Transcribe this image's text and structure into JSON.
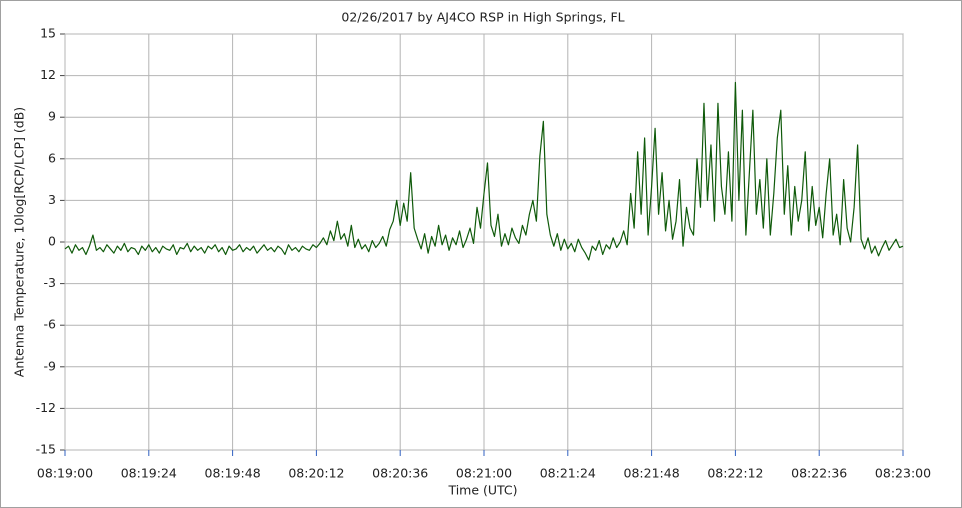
{
  "chart_data": {
    "type": "line",
    "title": "02/26/2017  by  AJ4CO RSP  in  High Springs, FL",
    "xlabel": "Time (UTC)",
    "ylabel": "Antenna Temperature, 10log[RCP/LCP] (dB)",
    "color": "#0f5a0a",
    "grid": true,
    "xlim": [
      "08:19:00",
      "08:23:00"
    ],
    "xticks": [
      "08:19:00",
      "08:19:24",
      "08:19:48",
      "08:20:12",
      "08:20:36",
      "08:21:00",
      "08:21:24",
      "08:21:48",
      "08:22:12",
      "08:22:36",
      "08:23:00"
    ],
    "ylim": [
      -15,
      15
    ],
    "yticks": [
      -15,
      -12,
      -9,
      -6,
      -3,
      0,
      3,
      6,
      9,
      12,
      15
    ],
    "x": [
      "08:19:00",
      "08:19:01",
      "08:19:02",
      "08:19:03",
      "08:19:04",
      "08:19:05",
      "08:19:06",
      "08:19:07",
      "08:19:08",
      "08:19:09",
      "08:19:10",
      "08:19:11",
      "08:19:12",
      "08:19:13",
      "08:19:14",
      "08:19:15",
      "08:19:16",
      "08:19:17",
      "08:19:18",
      "08:19:19",
      "08:19:20",
      "08:19:21",
      "08:19:22",
      "08:19:23",
      "08:19:24",
      "08:19:25",
      "08:19:26",
      "08:19:27",
      "08:19:28",
      "08:19:29",
      "08:19:30",
      "08:19:31",
      "08:19:32",
      "08:19:33",
      "08:19:34",
      "08:19:35",
      "08:19:36",
      "08:19:37",
      "08:19:38",
      "08:19:39",
      "08:19:40",
      "08:19:41",
      "08:19:42",
      "08:19:43",
      "08:19:44",
      "08:19:45",
      "08:19:46",
      "08:19:47",
      "08:19:48",
      "08:19:49",
      "08:19:50",
      "08:19:51",
      "08:19:52",
      "08:19:53",
      "08:19:54",
      "08:19:55",
      "08:19:56",
      "08:19:57",
      "08:19:58",
      "08:19:59",
      "08:20:00",
      "08:20:01",
      "08:20:02",
      "08:20:03",
      "08:20:04",
      "08:20:05",
      "08:20:06",
      "08:20:07",
      "08:20:08",
      "08:20:09",
      "08:20:10",
      "08:20:11",
      "08:20:12",
      "08:20:13",
      "08:20:14",
      "08:20:15",
      "08:20:16",
      "08:20:17",
      "08:20:18",
      "08:20:19",
      "08:20:20",
      "08:20:21",
      "08:20:22",
      "08:20:23",
      "08:20:24",
      "08:20:25",
      "08:20:26",
      "08:20:27",
      "08:20:28",
      "08:20:29",
      "08:20:30",
      "08:20:31",
      "08:20:32",
      "08:20:33",
      "08:20:34",
      "08:20:35",
      "08:20:36",
      "08:20:37",
      "08:20:38",
      "08:20:39",
      "08:20:40",
      "08:20:41",
      "08:20:42",
      "08:20:43",
      "08:20:44",
      "08:20:45",
      "08:20:46",
      "08:20:47",
      "08:20:48",
      "08:20:49",
      "08:20:50",
      "08:20:51",
      "08:20:52",
      "08:20:53",
      "08:20:54",
      "08:20:55",
      "08:20:56",
      "08:20:57",
      "08:20:58",
      "08:20:59",
      "08:21:00",
      "08:21:01",
      "08:21:02",
      "08:21:03",
      "08:21:04",
      "08:21:05",
      "08:21:06",
      "08:21:07",
      "08:21:08",
      "08:21:09",
      "08:21:10",
      "08:21:11",
      "08:21:12",
      "08:21:13",
      "08:21:14",
      "08:21:15",
      "08:21:16",
      "08:21:17",
      "08:21:18",
      "08:21:19",
      "08:21:20",
      "08:21:21",
      "08:21:22",
      "08:21:23",
      "08:21:24",
      "08:21:25",
      "08:21:26",
      "08:21:27",
      "08:21:28",
      "08:21:29",
      "08:21:30",
      "08:21:31",
      "08:21:32",
      "08:21:33",
      "08:21:34",
      "08:21:35",
      "08:21:36",
      "08:21:37",
      "08:21:38",
      "08:21:39",
      "08:21:40",
      "08:21:41",
      "08:21:42",
      "08:21:43",
      "08:21:44",
      "08:21:45",
      "08:21:46",
      "08:21:47",
      "08:21:48",
      "08:21:49",
      "08:21:50",
      "08:21:51",
      "08:21:52",
      "08:21:53",
      "08:21:54",
      "08:21:55",
      "08:21:56",
      "08:21:57",
      "08:21:58",
      "08:21:59",
      "08:22:00",
      "08:22:01",
      "08:22:02",
      "08:22:03",
      "08:22:04",
      "08:22:05",
      "08:22:06",
      "08:22:07",
      "08:22:08",
      "08:22:09",
      "08:22:10",
      "08:22:11",
      "08:22:12",
      "08:22:13",
      "08:22:14",
      "08:22:15",
      "08:22:16",
      "08:22:17",
      "08:22:18",
      "08:22:19",
      "08:22:20",
      "08:22:21",
      "08:22:22",
      "08:22:23",
      "08:22:24",
      "08:22:25",
      "08:22:26",
      "08:22:27",
      "08:22:28",
      "08:22:29",
      "08:22:30",
      "08:22:31",
      "08:22:32",
      "08:22:33",
      "08:22:34",
      "08:22:35",
      "08:22:36",
      "08:22:37",
      "08:22:38",
      "08:22:39",
      "08:22:40",
      "08:22:41",
      "08:22:42",
      "08:22:43",
      "08:22:44",
      "08:22:45",
      "08:22:46",
      "08:22:47",
      "08:22:48",
      "08:22:49",
      "08:22:50",
      "08:22:51",
      "08:22:52",
      "08:22:53",
      "08:22:54",
      "08:22:55",
      "08:22:56",
      "08:22:57",
      "08:22:58",
      "08:22:59",
      "08:23:00"
    ],
    "values": [
      -0.5,
      -0.3,
      -0.8,
      -0.2,
      -0.6,
      -0.4,
      -0.9,
      -0.3,
      0.5,
      -0.6,
      -0.4,
      -0.7,
      -0.2,
      -0.5,
      -0.8,
      -0.3,
      -0.6,
      -0.1,
      -0.7,
      -0.4,
      -0.5,
      -0.9,
      -0.3,
      -0.6,
      -0.2,
      -0.7,
      -0.4,
      -0.8,
      -0.3,
      -0.5,
      -0.6,
      -0.2,
      -0.9,
      -0.4,
      -0.5,
      -0.1,
      -0.7,
      -0.3,
      -0.6,
      -0.4,
      -0.8,
      -0.3,
      -0.5,
      -0.2,
      -0.7,
      -0.4,
      -0.9,
      -0.3,
      -0.6,
      -0.5,
      -0.2,
      -0.7,
      -0.4,
      -0.6,
      -0.3,
      -0.8,
      -0.5,
      -0.2,
      -0.6,
      -0.4,
      -0.7,
      -0.3,
      -0.5,
      -0.9,
      -0.2,
      -0.6,
      -0.4,
      -0.7,
      -0.3,
      -0.5,
      -0.6,
      -0.2,
      -0.4,
      -0.1,
      0.3,
      -0.2,
      0.8,
      0.1,
      1.5,
      0.2,
      0.6,
      -0.3,
      1.2,
      -0.4,
      0.2,
      -0.5,
      -0.2,
      -0.7,
      0.1,
      -0.4,
      -0.1,
      0.4,
      -0.3,
      0.9,
      1.5,
      3.0,
      1.2,
      2.8,
      1.5,
      5.0,
      1.0,
      0.2,
      -0.5,
      0.6,
      -0.8,
      0.4,
      -0.3,
      1.2,
      -0.2,
      0.5,
      -0.6,
      0.3,
      -0.2,
      0.8,
      -0.4,
      0.2,
      1.0,
      -0.1,
      2.5,
      1.0,
      3.5,
      5.7,
      1.2,
      0.4,
      2.0,
      -0.3,
      0.6,
      -0.2,
      1.0,
      0.3,
      -0.1,
      1.2,
      0.5,
      2.0,
      3.0,
      1.5,
      6.2,
      8.7,
      2.0,
      0.5,
      -0.3,
      0.6,
      -0.6,
      0.2,
      -0.5,
      -0.1,
      -0.7,
      0.2,
      -0.4,
      -0.8,
      -1.3,
      -0.3,
      -0.6,
      0.1,
      -0.9,
      -0.2,
      -0.5,
      0.3,
      -0.4,
      0.0,
      0.8,
      -0.2,
      3.5,
      1.0,
      6.5,
      2.0,
      7.5,
      0.5,
      4.0,
      8.2,
      2.0,
      5.0,
      0.8,
      3.0,
      0.2,
      1.5,
      4.5,
      -0.3,
      2.5,
      1.0,
      0.5,
      6.0,
      2.5,
      10.0,
      3.0,
      7.0,
      1.5,
      10.0,
      4.0,
      2.0,
      6.5,
      1.5,
      11.5,
      3.0,
      9.5,
      0.5,
      5.0,
      9.5,
      2.0,
      4.5,
      1.0,
      6.0,
      0.5,
      3.5,
      7.5,
      9.5,
      2.0,
      5.5,
      0.5,
      4.0,
      1.5,
      3.0,
      6.5,
      0.8,
      4.0,
      1.2,
      2.5,
      0.3,
      3.5,
      6.0,
      0.5,
      2.0,
      -0.2,
      4.5,
      1.0,
      0.0,
      2.5,
      7.0,
      0.2,
      -0.5,
      0.3,
      -0.8,
      -0.3,
      -1.0,
      -0.4,
      0.1,
      -0.6,
      -0.2,
      0.2,
      -0.4,
      -0.3
    ]
  }
}
